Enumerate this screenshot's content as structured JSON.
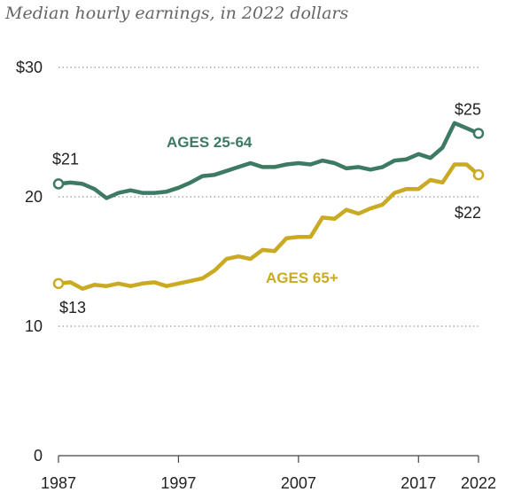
{
  "chart_data": {
    "type": "line",
    "subtitle": "Median hourly earnings, in 2022 dollars",
    "x": [
      1987,
      1988,
      1989,
      1990,
      1991,
      1992,
      1993,
      1994,
      1995,
      1996,
      1997,
      1998,
      1999,
      2000,
      2001,
      2002,
      2003,
      2004,
      2005,
      2006,
      2007,
      2008,
      2009,
      2010,
      2011,
      2012,
      2013,
      2014,
      2015,
      2016,
      2017,
      2018,
      2019,
      2020,
      2021,
      2022
    ],
    "series": [
      {
        "name": "AGES 25-64",
        "color": "#3d7a63",
        "values": [
          21.0,
          21.1,
          21.0,
          20.6,
          19.9,
          20.3,
          20.5,
          20.3,
          20.3,
          20.4,
          20.7,
          21.1,
          21.6,
          21.7,
          22.0,
          22.3,
          22.6,
          22.3,
          22.3,
          22.5,
          22.6,
          22.5,
          22.8,
          22.6,
          22.2,
          22.3,
          22.1,
          22.3,
          22.8,
          22.9,
          23.3,
          23.0,
          23.8,
          25.7,
          25.3,
          24.9
        ]
      },
      {
        "name": "AGES 65+",
        "color": "#c9aa22",
        "values": [
          13.3,
          13.4,
          12.9,
          13.2,
          13.1,
          13.3,
          13.1,
          13.3,
          13.4,
          13.1,
          13.3,
          13.5,
          13.7,
          14.3,
          15.2,
          15.4,
          15.2,
          15.9,
          15.8,
          16.8,
          16.9,
          16.9,
          18.4,
          18.3,
          19.0,
          18.7,
          19.1,
          19.4,
          20.3,
          20.6,
          20.6,
          21.3,
          21.1,
          22.5,
          22.5,
          21.7
        ]
      }
    ],
    "annotations": [
      {
        "text": "$21",
        "series": 0,
        "index": 0
      },
      {
        "text": "$25",
        "series": 0,
        "index": 35
      },
      {
        "text": "$13",
        "series": 1,
        "index": 0
      },
      {
        "text": "$22",
        "series": 1,
        "index": 35
      }
    ],
    "yticks": [
      {
        "value": 0,
        "label": "0"
      },
      {
        "value": 10,
        "label": "10"
      },
      {
        "value": 20,
        "label": "20"
      },
      {
        "value": 30,
        "label": "$30"
      }
    ],
    "xticks": [
      {
        "value": 1987,
        "label": "1987"
      },
      {
        "value": 1997,
        "label": "1997"
      },
      {
        "value": 2007,
        "label": "2007"
      },
      {
        "value": 2017,
        "label": "2017"
      },
      {
        "value": 2022,
        "label": "2022"
      }
    ],
    "ylim": [
      0,
      30
    ],
    "xlim": [
      1987,
      2022
    ],
    "grid": "dotted horizontal",
    "legend": "inline labels"
  }
}
